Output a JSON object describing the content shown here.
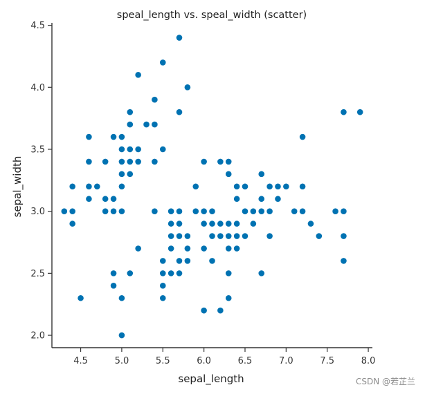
{
  "chart_data": {
    "type": "scatter",
    "title": "speal_length vs. speal_width (scatter)",
    "xlabel": "sepal_length",
    "ylabel": "sepal_width",
    "xlim": [
      4.15,
      8.05
    ],
    "ylim": [
      1.9,
      4.52
    ],
    "xticks": [
      "4.5",
      "5.0",
      "5.5",
      "6.0",
      "6.5",
      "7.0",
      "7.5",
      "8.0"
    ],
    "yticks": [
      "2.0",
      "2.5",
      "3.0",
      "3.5",
      "4.0",
      "4.5"
    ],
    "grid": false,
    "marker_color": "#0072b2",
    "points": [
      [
        4.3,
        3.0
      ],
      [
        4.4,
        3.0
      ],
      [
        4.4,
        2.9
      ],
      [
        4.4,
        3.2
      ],
      [
        4.5,
        2.3
      ],
      [
        4.6,
        3.1
      ],
      [
        4.6,
        3.4
      ],
      [
        4.6,
        3.6
      ],
      [
        4.6,
        3.2
      ],
      [
        4.7,
        3.2
      ],
      [
        4.8,
        3.4
      ],
      [
        4.8,
        3.0
      ],
      [
        4.8,
        3.1
      ],
      [
        4.9,
        3.0
      ],
      [
        4.9,
        3.1
      ],
      [
        4.9,
        3.6
      ],
      [
        4.9,
        2.4
      ],
      [
        4.9,
        2.5
      ],
      [
        5.0,
        3.6
      ],
      [
        5.0,
        3.4
      ],
      [
        5.0,
        3.0
      ],
      [
        5.0,
        3.3
      ],
      [
        5.0,
        3.5
      ],
      [
        5.0,
        3.2
      ],
      [
        5.0,
        2.0
      ],
      [
        5.0,
        2.3
      ],
      [
        5.1,
        3.5
      ],
      [
        5.1,
        3.7
      ],
      [
        5.1,
        3.8
      ],
      [
        5.1,
        3.3
      ],
      [
        5.1,
        3.4
      ],
      [
        5.1,
        2.5
      ],
      [
        5.2,
        3.5
      ],
      [
        5.2,
        3.4
      ],
      [
        5.2,
        4.1
      ],
      [
        5.2,
        2.7
      ],
      [
        5.3,
        3.7
      ],
      [
        5.4,
        3.9
      ],
      [
        5.4,
        3.7
      ],
      [
        5.4,
        3.4
      ],
      [
        5.4,
        3.0
      ],
      [
        5.5,
        4.2
      ],
      [
        5.5,
        3.5
      ],
      [
        5.5,
        2.3
      ],
      [
        5.5,
        2.4
      ],
      [
        5.5,
        2.5
      ],
      [
        5.5,
        2.6
      ],
      [
        5.6,
        2.9
      ],
      [
        5.6,
        3.0
      ],
      [
        5.6,
        2.5
      ],
      [
        5.6,
        2.8
      ],
      [
        5.6,
        2.7
      ],
      [
        5.7,
        4.4
      ],
      [
        5.7,
        3.8
      ],
      [
        5.7,
        2.8
      ],
      [
        5.7,
        2.6
      ],
      [
        5.7,
        2.9
      ],
      [
        5.7,
        3.0
      ],
      [
        5.7,
        2.5
      ],
      [
        5.8,
        4.0
      ],
      [
        5.8,
        2.7
      ],
      [
        5.8,
        2.6
      ],
      [
        5.8,
        2.8
      ],
      [
        5.9,
        3.0
      ],
      [
        5.9,
        3.2
      ],
      [
        6.0,
        2.2
      ],
      [
        6.0,
        2.9
      ],
      [
        6.0,
        2.7
      ],
      [
        6.0,
        3.4
      ],
      [
        6.0,
        3.0
      ],
      [
        6.1,
        2.8
      ],
      [
        6.1,
        2.9
      ],
      [
        6.1,
        3.0
      ],
      [
        6.1,
        2.6
      ],
      [
        6.2,
        2.2
      ],
      [
        6.2,
        2.9
      ],
      [
        6.2,
        3.4
      ],
      [
        6.2,
        2.8
      ],
      [
        6.3,
        3.3
      ],
      [
        6.3,
        2.5
      ],
      [
        6.3,
        2.3
      ],
      [
        6.3,
        2.7
      ],
      [
        6.3,
        2.9
      ],
      [
        6.3,
        2.8
      ],
      [
        6.3,
        3.4
      ],
      [
        6.4,
        3.2
      ],
      [
        6.4,
        2.9
      ],
      [
        6.4,
        2.7
      ],
      [
        6.4,
        2.8
      ],
      [
        6.4,
        3.1
      ],
      [
        6.5,
        2.8
      ],
      [
        6.5,
        3.0
      ],
      [
        6.5,
        3.2
      ],
      [
        6.6,
        2.9
      ],
      [
        6.6,
        3.0
      ],
      [
        6.7,
        3.1
      ],
      [
        6.7,
        3.0
      ],
      [
        6.7,
        3.3
      ],
      [
        6.7,
        2.5
      ],
      [
        6.8,
        2.8
      ],
      [
        6.8,
        3.0
      ],
      [
        6.8,
        3.2
      ],
      [
        6.9,
        3.1
      ],
      [
        6.9,
        3.2
      ],
      [
        7.0,
        3.2
      ],
      [
        7.1,
        3.0
      ],
      [
        7.2,
        3.6
      ],
      [
        7.2,
        3.2
      ],
      [
        7.2,
        3.0
      ],
      [
        7.3,
        2.9
      ],
      [
        7.4,
        2.8
      ],
      [
        7.6,
        3.0
      ],
      [
        7.7,
        3.8
      ],
      [
        7.7,
        2.6
      ],
      [
        7.7,
        2.8
      ],
      [
        7.7,
        3.0
      ],
      [
        7.9,
        3.8
      ]
    ]
  },
  "watermark": "CSDN @若芷兰"
}
